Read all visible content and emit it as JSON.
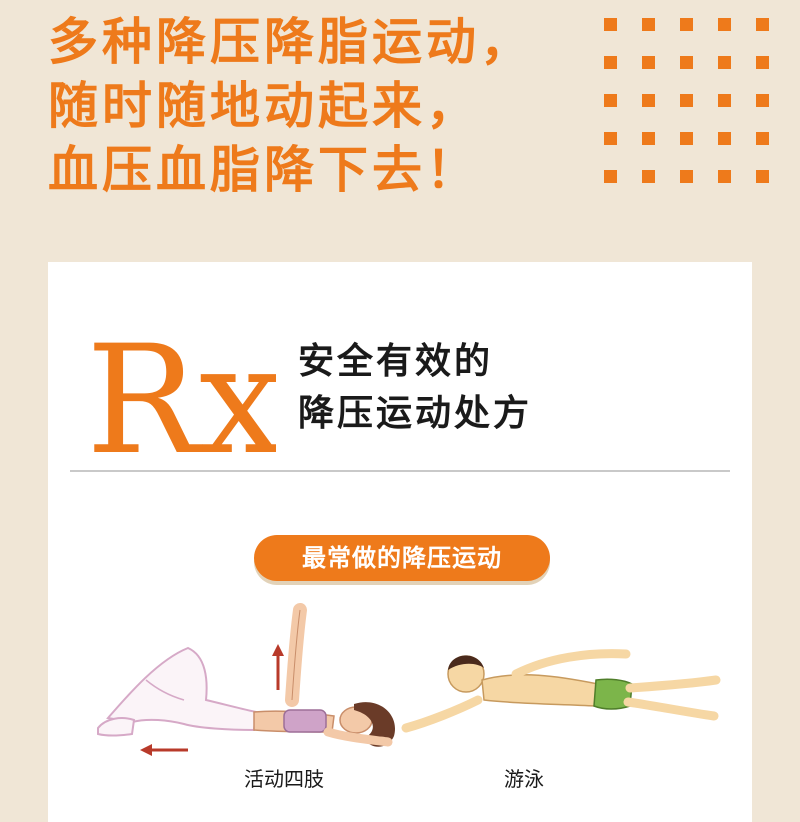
{
  "headline": {
    "lines": [
      "多种降压降脂运动，",
      "随时随地动起来，",
      "血压血脂降下去！"
    ]
  },
  "card": {
    "rx_symbol": "Rx",
    "title_lines": [
      "安全有效的",
      "降压运动处方"
    ],
    "section_pill": "最常做的降压运动",
    "exercises": [
      {
        "label": "活动四肢",
        "illustration": "limb-exercise-illustration"
      },
      {
        "label": "游泳",
        "illustration": "swimming-illustration"
      }
    ]
  },
  "colors": {
    "background": "#f0e6d6",
    "accent_orange": "#ee7a1b",
    "card": "#ffffff",
    "text": "#1a1a1a"
  }
}
